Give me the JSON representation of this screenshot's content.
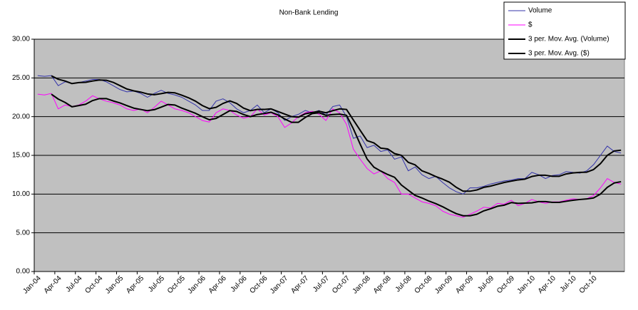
{
  "chart_data": {
    "type": "line",
    "title": "Non-Bank Lending",
    "categories": [
      "Jan-04",
      null,
      null,
      "Apr-04",
      null,
      null,
      "Jul-04",
      null,
      null,
      "Oct-04",
      null,
      null,
      "Jan-05",
      null,
      null,
      "Apr-05",
      null,
      null,
      "Jul-05",
      null,
      null,
      "Oct-05",
      null,
      null,
      "Jan-06",
      null,
      null,
      "Apr-06",
      null,
      null,
      "Jul-06",
      null,
      null,
      "Oct-06",
      null,
      null,
      "Jan-07",
      null,
      null,
      "Apr-07",
      null,
      null,
      "Jul-07",
      null,
      null,
      "Oct-07",
      null,
      null,
      "Jan-08",
      null,
      null,
      "Apr-08",
      null,
      null,
      "Jul-08",
      null,
      null,
      "Oct-08",
      null,
      null,
      "Jan-09",
      null,
      null,
      "Apr-09",
      null,
      null,
      "Jul-09",
      null,
      null,
      "Oct-09",
      null,
      null,
      "Jan-10",
      null,
      null,
      "Apr-10",
      null,
      null,
      "Jul-10",
      null,
      null,
      "Oct-10",
      null,
      null,
      null,
      null
    ],
    "series": [
      {
        "name": "Volume",
        "color": "#3333aa",
        "width": 1,
        "values": [
          25.3,
          25.2,
          25.3,
          24.0,
          24.5,
          24.3,
          24.4,
          24.6,
          24.8,
          24.8,
          24.5,
          24.0,
          23.5,
          23.2,
          23.3,
          23.0,
          22.5,
          23.0,
          23.4,
          23.0,
          22.8,
          22.5,
          22.0,
          21.5,
          20.8,
          20.8,
          22.0,
          22.3,
          21.8,
          21.0,
          20.5,
          20.8,
          21.5,
          20.5,
          21.0,
          20.5,
          19.5,
          20.0,
          20.3,
          20.8,
          20.5,
          20.8,
          20.2,
          21.3,
          21.5,
          20.0,
          17.2,
          17.5,
          16.0,
          16.3,
          15.5,
          15.7,
          14.5,
          14.8,
          13.0,
          13.5,
          12.5,
          12.0,
          12.3,
          11.5,
          10.8,
          10.3,
          10.0,
          10.8,
          10.8,
          11.0,
          11.3,
          11.5,
          11.7,
          11.8,
          12.0,
          12.0,
          12.8,
          12.5,
          12.0,
          12.4,
          12.5,
          12.9,
          12.8,
          12.7,
          13.0,
          13.8,
          15.0,
          16.2,
          15.5,
          15.3
        ]
      },
      {
        "name": "$",
        "color": "#ff00ff",
        "width": 1,
        "values": [
          22.9,
          22.8,
          23.0,
          21.0,
          21.5,
          21.3,
          21.5,
          22.0,
          22.7,
          22.3,
          22.0,
          21.8,
          21.5,
          21.0,
          20.8,
          21.0,
          20.5,
          21.2,
          22.0,
          21.5,
          21.0,
          20.8,
          20.5,
          20.0,
          19.5,
          19.3,
          20.5,
          21.0,
          20.8,
          20.2,
          19.8,
          20.0,
          21.0,
          20.2,
          20.5,
          20.0,
          18.6,
          19.2,
          20.0,
          20.5,
          20.7,
          20.3,
          19.5,
          21.0,
          20.5,
          19.0,
          15.8,
          14.5,
          13.3,
          12.6,
          13.0,
          12.0,
          11.5,
          10.0,
          10.0,
          9.5,
          9.0,
          8.8,
          8.5,
          7.8,
          7.4,
          7.2,
          7.0,
          7.4,
          7.8,
          8.3,
          8.2,
          8.8,
          8.7,
          9.2,
          8.5,
          8.8,
          9.3,
          9.0,
          8.8,
          9.0,
          9.0,
          9.2,
          9.4,
          9.3,
          9.4,
          9.8,
          10.8,
          12.0,
          11.5,
          11.3
        ]
      },
      {
        "name": "3 per. Mov. Avg. (Volume)",
        "color": "#000000",
        "width": 2,
        "values": [
          null,
          null,
          25.27,
          24.83,
          24.6,
          24.27,
          24.4,
          24.43,
          24.6,
          24.73,
          24.7,
          24.43,
          24,
          23.57,
          23.33,
          23.17,
          22.93,
          22.83,
          22.97,
          23.13,
          23.07,
          22.77,
          22.43,
          22,
          21.43,
          21.03,
          21.2,
          21.7,
          22.03,
          21.7,
          21.1,
          20.77,
          20.93,
          20.93,
          21,
          20.67,
          20.33,
          20,
          19.93,
          20.37,
          20.53,
          20.7,
          20.5,
          20.77,
          21,
          20.93,
          19.57,
          18.23,
          16.9,
          16.6,
          15.93,
          15.83,
          15.23,
          15,
          14.1,
          13.77,
          13,
          12.67,
          12.27,
          11.93,
          11.53,
          10.87,
          10.37,
          10.37,
          10.53,
          10.87,
          11.03,
          11.27,
          11.5,
          11.67,
          11.83,
          11.93,
          12.27,
          12.43,
          12.43,
          12.3,
          12.3,
          12.6,
          12.73,
          12.8,
          12.83,
          13.17,
          13.93,
          15,
          15.57,
          15.67
        ]
      },
      {
        "name": "3 per. Mov. Avg. ($)",
        "color": "#000000",
        "width": 2,
        "values": [
          null,
          null,
          22.9,
          22.27,
          21.83,
          21.27,
          21.43,
          21.6,
          22.07,
          22.33,
          22.33,
          22.03,
          21.77,
          21.43,
          21.1,
          20.93,
          20.77,
          20.9,
          21.23,
          21.57,
          21.5,
          21.1,
          20.77,
          20.43,
          20,
          19.6,
          19.77,
          20.27,
          20.77,
          20.67,
          20.27,
          20,
          20.27,
          20.4,
          20.57,
          20.23,
          19.7,
          19.27,
          19.27,
          19.9,
          20.4,
          20.5,
          20.17,
          20.27,
          20.33,
          20.17,
          18.43,
          16.43,
          14.53,
          13.47,
          12.97,
          12.53,
          12.17,
          11.17,
          10.5,
          9.83,
          9.5,
          9.1,
          8.77,
          8.37,
          7.9,
          7.47,
          7.2,
          7.2,
          7.4,
          7.83,
          8.1,
          8.43,
          8.57,
          8.9,
          8.8,
          8.83,
          8.87,
          9.03,
          9.03,
          8.93,
          8.93,
          9.07,
          9.2,
          9.3,
          9.37,
          9.5,
          10,
          10.87,
          11.43,
          11.6
        ]
      }
    ],
    "ylim": [
      0,
      30
    ],
    "yticks": [
      {
        "value": 0,
        "label": "0.00"
      },
      {
        "value": 5,
        "label": "5.00"
      },
      {
        "value": 10,
        "label": "10.00"
      },
      {
        "value": 15,
        "label": "15.00"
      },
      {
        "value": 20,
        "label": "20.00"
      },
      {
        "value": 25,
        "label": "25.00"
      },
      {
        "value": 30,
        "label": "30.00"
      }
    ],
    "grid": true,
    "legend": "top-right",
    "plot_background": "#c0c0c0"
  }
}
